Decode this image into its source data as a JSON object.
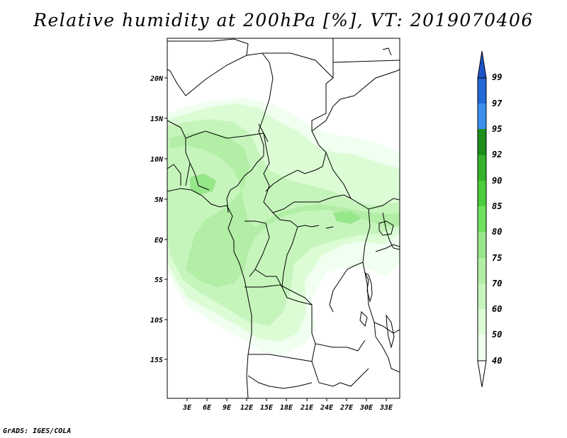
{
  "title": "Relative humidity at 200hPa [%], VT: 2019070406",
  "credit": "GrADS: IGES/COLA",
  "colors": {
    "rh_40_50": "#f0fff0",
    "rh_50_60": "#dcfcd6",
    "rh_60_70": "#c6f5bc",
    "rh_70_75": "#b2eea5",
    "rh_75_80": "#96e68a",
    "rh_80_85": "#6ee25e",
    "rh_85_90": "#4bcd3c",
    "rh_90_92": "#35b22a",
    "rh_92_95": "#1c8e1a",
    "rh_95_97": "#3c90f0",
    "rh_97_99": "#2168d8",
    "rh_gt_99": "#1c54c8",
    "borders": "#000000"
  },
  "map": {
    "lat_labels": [
      "20N",
      "15N",
      "10N",
      "5N",
      "EQ",
      "5S",
      "10S",
      "15S"
    ],
    "lon_labels": [
      "3E",
      "6E",
      "9E",
      "12E",
      "15E",
      "18E",
      "21E",
      "24E",
      "27E",
      "30E",
      "33E"
    ]
  },
  "colorbar": {
    "labels": [
      "40",
      "50",
      "60",
      "70",
      "75",
      "80",
      "85",
      "90",
      "92",
      "95",
      "97",
      "99"
    ],
    "icons": [
      "triangle-up-arrow-icon",
      "triangle-down-arrow-icon"
    ]
  }
}
